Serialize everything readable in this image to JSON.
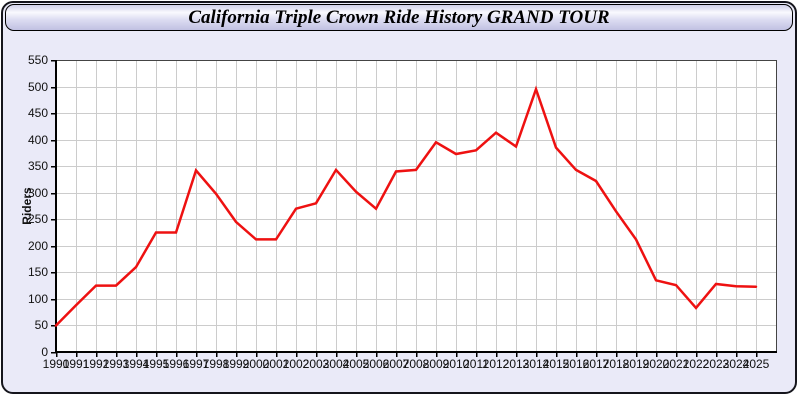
{
  "colors": {
    "panel_background": "#eaeaf8",
    "plot_background": "#ffffff",
    "grid": "#cccccc",
    "plot_border": "#444444",
    "axis": "#000000",
    "line": "#ee1111",
    "text": "#111111"
  },
  "chart_data": {
    "type": "line",
    "title": "California Triple Crown Ride History GRAND TOUR",
    "ylabel": "Riders",
    "xlabel": "",
    "grid": true,
    "legend": "none",
    "ylim": [
      0,
      550
    ],
    "ytick_step": 50,
    "x": [
      1990,
      1991,
      1992,
      1993,
      1994,
      1995,
      1996,
      1997,
      1998,
      1999,
      2000,
      2001,
      2002,
      2003,
      2004,
      2005,
      2006,
      2007,
      2008,
      2009,
      2010,
      2011,
      2012,
      2013,
      2014,
      2015,
      2016,
      2017,
      2018,
      2019,
      2020,
      2021,
      2022,
      2023,
      2024,
      2025
    ],
    "series": [
      {
        "name": "Riders",
        "color": "#ee1111",
        "values": [
          50,
          88,
          125,
          125,
          160,
          225,
          225,
          342,
          298,
          245,
          212,
          212,
          270,
          280,
          343,
          302,
          270,
          340,
          343,
          395,
          373,
          380,
          413,
          387,
          495,
          385,
          343,
          322,
          265,
          212,
          135,
          126,
          83,
          128,
          124,
          123
        ]
      }
    ]
  }
}
